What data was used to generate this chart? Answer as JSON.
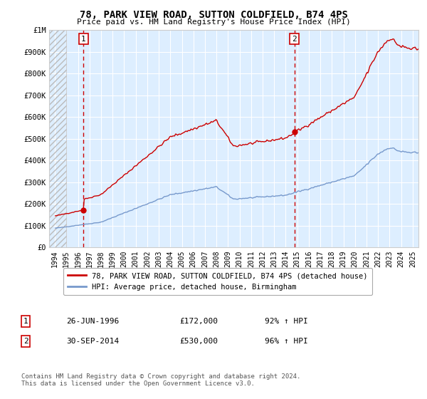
{
  "title": "78, PARK VIEW ROAD, SUTTON COLDFIELD, B74 4PS",
  "subtitle": "Price paid vs. HM Land Registry's House Price Index (HPI)",
  "legend_line1": "78, PARK VIEW ROAD, SUTTON COLDFIELD, B74 4PS (detached house)",
  "legend_line2": "HPI: Average price, detached house, Birmingham",
  "footnote": "Contains HM Land Registry data © Crown copyright and database right 2024.\nThis data is licensed under the Open Government Licence v3.0.",
  "annotation1_label": "1",
  "annotation1_date": "26-JUN-1996",
  "annotation1_price": "£172,000",
  "annotation1_hpi": "92% ↑ HPI",
  "annotation2_label": "2",
  "annotation2_date": "30-SEP-2014",
  "annotation2_price": "£530,000",
  "annotation2_hpi": "96% ↑ HPI",
  "sale1_x": 1996.49,
  "sale1_y": 172000,
  "sale2_x": 2014.75,
  "sale2_y": 530000,
  "property_color": "#cc0000",
  "hpi_color": "#7799cc",
  "background_plot": "#ddeeff",
  "ylim_min": 0,
  "ylim_max": 1000000,
  "xlim_min": 1993.5,
  "xlim_max": 2025.5,
  "yticks": [
    0,
    100000,
    200000,
    300000,
    400000,
    500000,
    600000,
    700000,
    800000,
    900000,
    1000000
  ],
  "ytick_labels": [
    "£0",
    "£100K",
    "£200K",
    "£300K",
    "£400K",
    "£500K",
    "£600K",
    "£700K",
    "£800K",
    "£900K",
    "£1M"
  ],
  "xticks": [
    1994,
    1995,
    1996,
    1997,
    1998,
    1999,
    2000,
    2001,
    2002,
    2003,
    2004,
    2005,
    2006,
    2007,
    2008,
    2009,
    2010,
    2011,
    2012,
    2013,
    2014,
    2015,
    2016,
    2017,
    2018,
    2019,
    2020,
    2021,
    2022,
    2023,
    2024,
    2025
  ]
}
